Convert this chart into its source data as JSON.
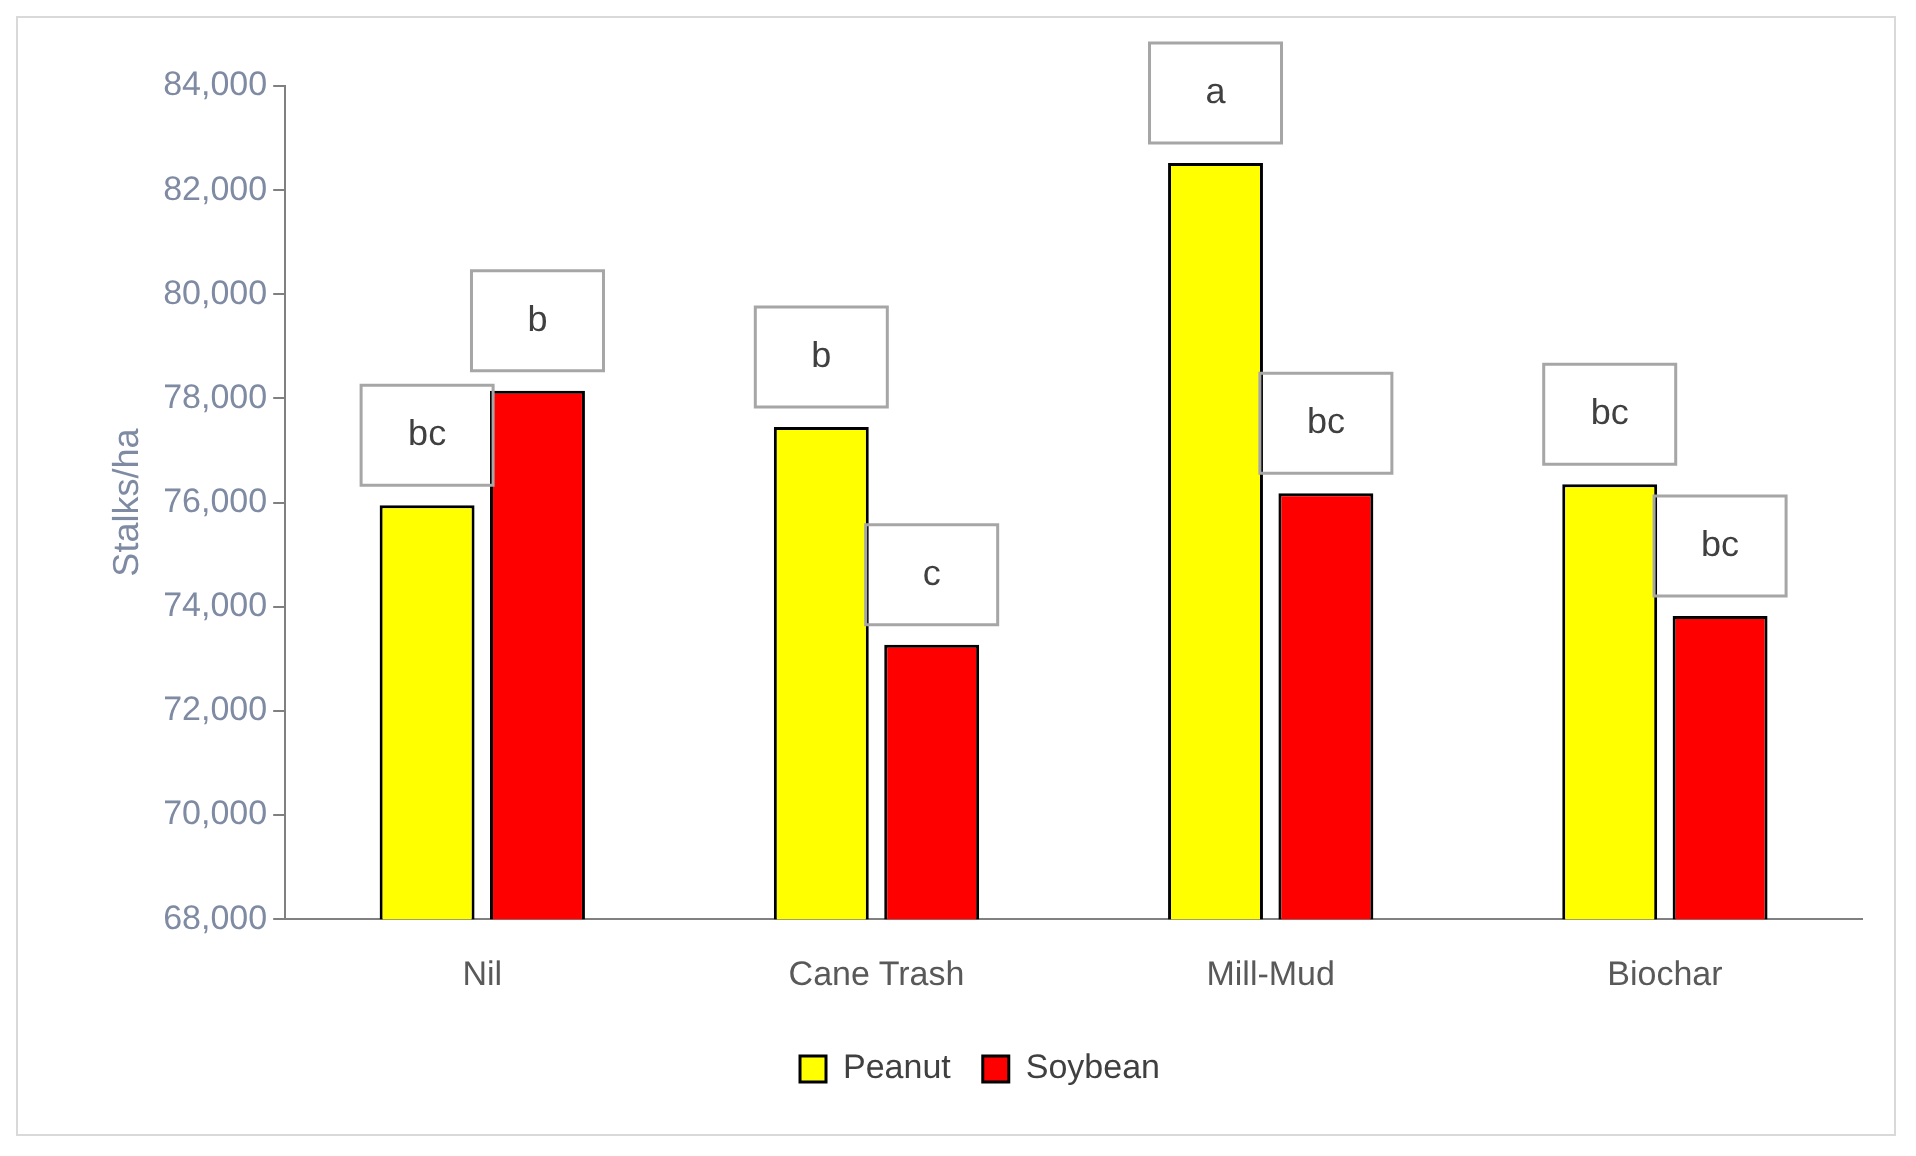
{
  "chart_data": {
    "type": "bar",
    "ylabel": "Stalks/ha",
    "categories": [
      "Nil",
      "Cane Trash",
      "Mill-Mud",
      "Biochar"
    ],
    "series": [
      {
        "name": "Peanut",
        "color": "#ffff00",
        "values": [
          75950,
          77450,
          82520,
          76350
        ]
      },
      {
        "name": "Soybean",
        "color": "#ff0000",
        "values": [
          78150,
          73270,
          76180,
          73820
        ]
      }
    ],
    "ylim": [
      68000,
      84000
    ],
    "yticks": [
      {
        "value": 68000,
        "label": "68,000"
      },
      {
        "value": 70000,
        "label": "70,000"
      },
      {
        "value": 72000,
        "label": "72,000"
      },
      {
        "value": 74000,
        "label": "74,000"
      },
      {
        "value": 76000,
        "label": "76,000"
      },
      {
        "value": 78000,
        "label": "78,000"
      },
      {
        "value": 80000,
        "label": "80,000"
      },
      {
        "value": 82000,
        "label": "82,000"
      },
      {
        "value": 84000,
        "label": "84,000"
      }
    ],
    "grid": false,
    "legend": "bottom",
    "annotations": [
      "bc",
      "b",
      "b",
      "c",
      "a",
      "bc",
      "bc",
      "bc"
    ]
  }
}
